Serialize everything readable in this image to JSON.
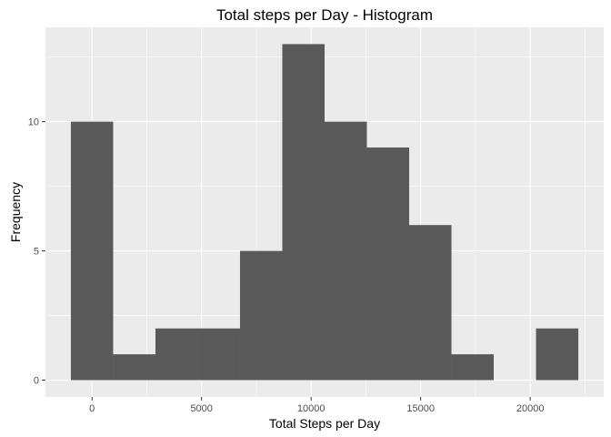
{
  "chart_data": {
    "type": "bar",
    "title": "Total steps per Day - Histogram",
    "xlabel": "Total Steps per Day",
    "ylabel": "Frequency",
    "bin_width": 1930,
    "bins": [
      {
        "x_start": -965,
        "x_end": 965,
        "count": 10
      },
      {
        "x_start": 965,
        "x_end": 2895,
        "count": 1
      },
      {
        "x_start": 2895,
        "x_end": 4825,
        "count": 2
      },
      {
        "x_start": 4825,
        "x_end": 6755,
        "count": 2
      },
      {
        "x_start": 6755,
        "x_end": 8685,
        "count": 5
      },
      {
        "x_start": 8685,
        "x_end": 10615,
        "count": 13
      },
      {
        "x_start": 10615,
        "x_end": 12545,
        "count": 10
      },
      {
        "x_start": 12545,
        "x_end": 14475,
        "count": 9
      },
      {
        "x_start": 14475,
        "x_end": 16405,
        "count": 6
      },
      {
        "x_start": 16405,
        "x_end": 18335,
        "count": 1
      },
      {
        "x_start": 18335,
        "x_end": 20265,
        "count": 0
      },
      {
        "x_start": 20265,
        "x_end": 22195,
        "count": 2
      }
    ],
    "x_ticks": [
      0,
      5000,
      10000,
      15000,
      20000
    ],
    "x_tick_labels": [
      "0",
      "5000",
      "10000",
      "15000",
      "20000"
    ],
    "y_ticks": [
      0,
      5,
      10
    ],
    "y_tick_labels": [
      "0",
      "5",
      "10"
    ],
    "xlim": [
      -2125,
      23355
    ],
    "ylim": [
      -0.65,
      13.65
    ],
    "grid": true,
    "colors": {
      "bar": "#595959",
      "panel_background": "#ebebeb",
      "grid": "#ffffff"
    }
  }
}
